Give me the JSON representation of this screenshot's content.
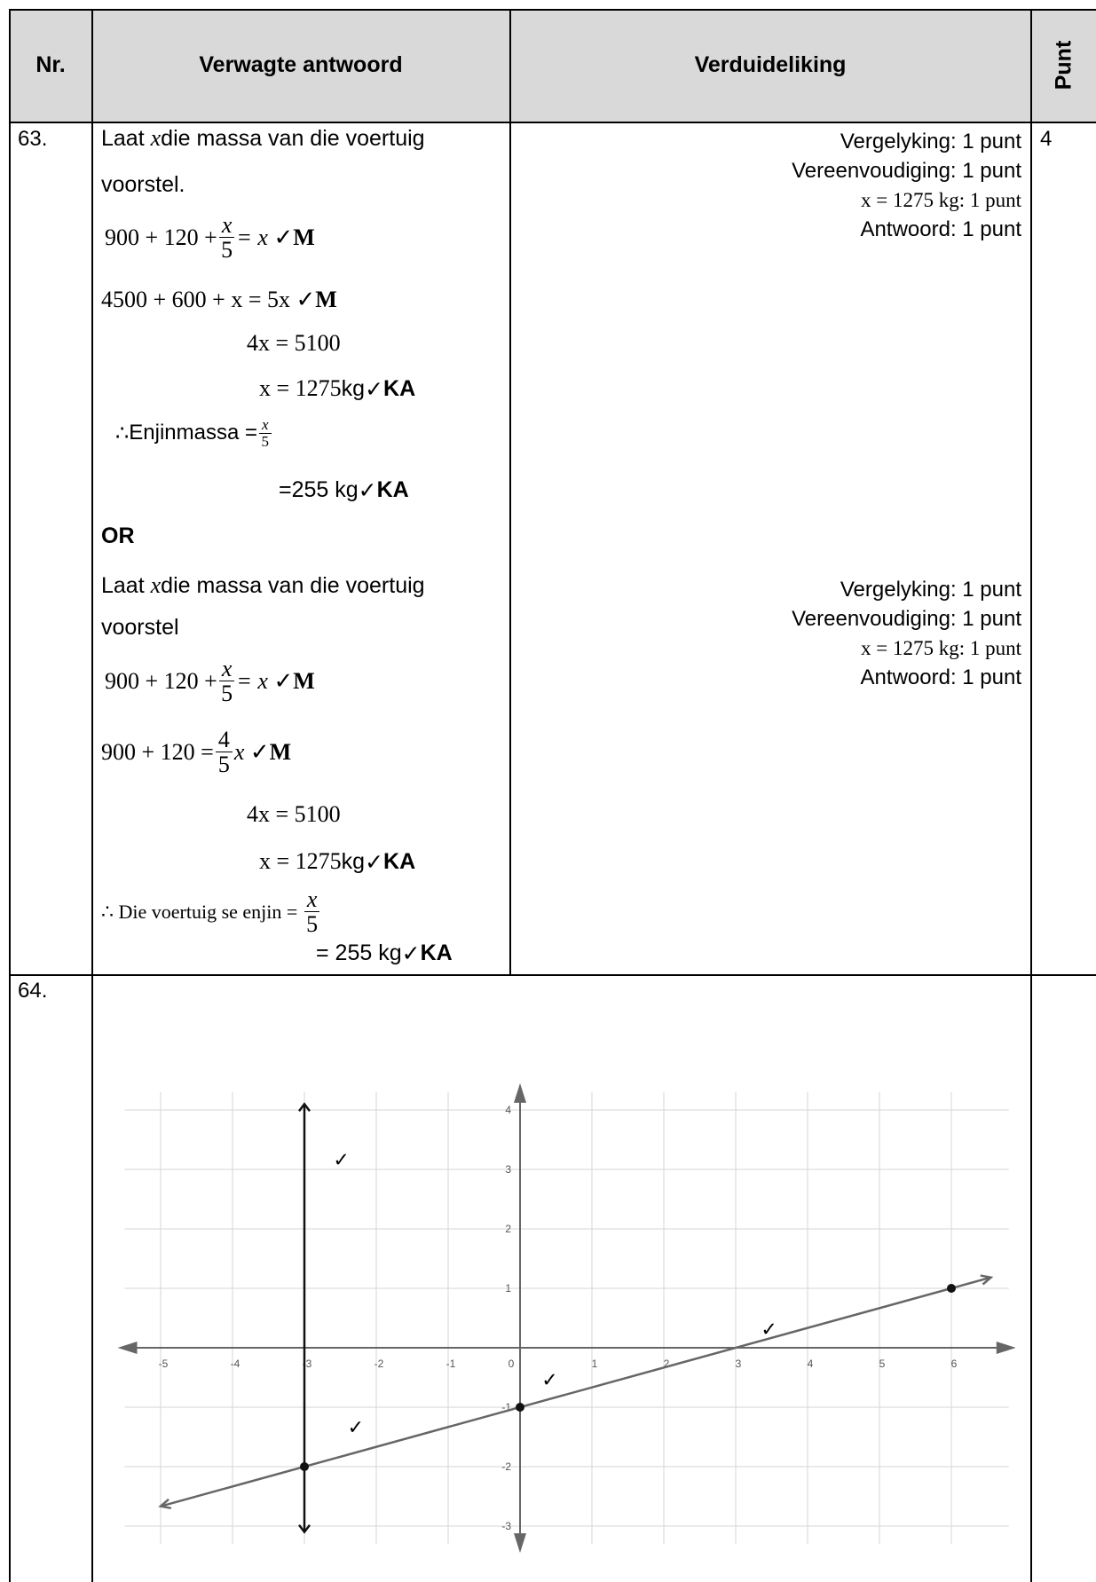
{
  "header": {
    "nr": "Nr.",
    "expected": "Verwagte antwoord",
    "explanation": "Verduideliking",
    "points": "Punt"
  },
  "q63": {
    "number": "63.",
    "points": "4",
    "method1": {
      "intro_1": "Laat",
      "intro_var": "x",
      "intro_2": " die massa van die voertuig",
      "intro_3": "voorstel.",
      "eq1_left": "900  + 120  +",
      "eq1_num": "x",
      "eq1_den": "5",
      "eq1_right": "= x",
      "eq2": "4500 + 600 + x = 5x",
      "eq3": "4x = 5100",
      "eq4_math": "x = 1275",
      "eq4_unit": " kg ",
      "concl_sym": "∴",
      "concl_label": " Enjinmassa = ",
      "concl_num": "x",
      "concl_den": "5",
      "concl_value": "=255 kg "
    },
    "or_label": "OR",
    "method2": {
      "intro_1": "Laat",
      "intro_var": "x",
      "intro_2": " die massa van die voertuig",
      "intro_3": "voorstel",
      "eq1_left": "900  + 120  +",
      "eq1_num": "x",
      "eq1_den": "5",
      "eq1_right": "= x",
      "eq2_left": "900  + 120  =",
      "eq2_num": "4",
      "eq2_den": "5",
      "eq2_right": "x",
      "eq3": "4x = 5100",
      "eq4_math": "x = 1275",
      "eq4_unit": " kg ",
      "concl_label": "∴ Die voertuig se enjin =",
      "concl_num": "x",
      "concl_den": "5",
      "concl_value": "= 255 kg "
    },
    "marks": {
      "check": "✓",
      "M": "M",
      "KA": "KA"
    },
    "explanation_1": [
      "Vergelyking: 1 punt",
      "Vereenvoudiging: 1 punt",
      "x = 1275 kg: 1 punt",
      "Antwoord: 1 punt"
    ],
    "explanation_2": [
      "Vergelyking: 1 punt",
      "Vereenvoudiging: 1 punt",
      "x = 1275 kg: 1 punt",
      "Antwoord: 1 punt"
    ]
  },
  "q64": {
    "number": "64.",
    "chart_data": {
      "type": "line",
      "xlim": [
        -5.5,
        6.8
      ],
      "ylim": [
        -3.3,
        4.3
      ],
      "grid": true,
      "x_ticks": [
        "-5",
        "-4",
        "-3",
        "-2",
        "-1",
        "0",
        "1",
        "2",
        "3",
        "4",
        "5",
        "6"
      ],
      "y_ticks": [
        "-3",
        "-2",
        "-1",
        "1",
        "2",
        "3",
        "4"
      ],
      "series": [
        {
          "kind": "vertical-line",
          "x": -3,
          "y_range": [
            -3.1,
            4.1
          ]
        },
        {
          "kind": "line",
          "points": [
            [
              -3,
              -2
            ],
            [
              0,
              -1
            ],
            [
              6,
              1
            ]
          ]
        }
      ],
      "points": [
        [
          -3,
          -2
        ],
        [
          0,
          -1
        ],
        [
          6,
          1
        ]
      ],
      "check_marks": [
        "✓",
        "✓",
        "✓",
        "✓"
      ]
    }
  }
}
